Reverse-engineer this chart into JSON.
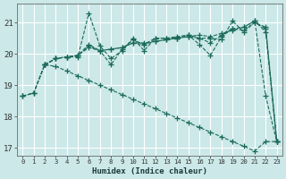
{
  "xlabel": "Humidex (Indice chaleur)",
  "bg_color": "#cce8e8",
  "grid_color": "#ffffff",
  "line_color": "#1a6a5a",
  "xlim": [
    -0.5,
    23.5
  ],
  "ylim": [
    16.75,
    21.6
  ],
  "yticks": [
    17,
    18,
    19,
    20,
    21
  ],
  "xticks": [
    0,
    1,
    2,
    3,
    4,
    5,
    6,
    7,
    8,
    9,
    10,
    11,
    12,
    13,
    14,
    15,
    16,
    17,
    18,
    19,
    20,
    21,
    22,
    23
  ],
  "lines": [
    {
      "x": [
        0,
        1,
        2,
        3,
        4,
        5,
        6,
        7,
        8,
        9,
        10,
        11,
        12,
        13,
        14,
        15,
        16,
        17,
        18,
        19,
        20,
        21,
        22,
        23
      ],
      "y": [
        18.65,
        18.75,
        19.65,
        19.85,
        19.9,
        19.9,
        21.3,
        20.25,
        19.85,
        20.1,
        20.5,
        20.1,
        20.5,
        20.5,
        20.55,
        20.6,
        20.5,
        20.5,
        20.45,
        21.05,
        20.7,
        21.0,
        20.85,
        17.2
      ]
    },
    {
      "x": [
        0,
        1,
        2,
        3,
        4,
        5,
        6,
        7,
        8,
        9,
        10,
        11,
        12,
        13,
        14,
        15,
        16,
        17,
        18,
        19,
        20,
        21,
        22,
        23
      ],
      "y": [
        18.65,
        18.75,
        19.65,
        19.85,
        19.9,
        19.95,
        20.25,
        20.1,
        20.15,
        20.2,
        20.35,
        20.3,
        20.4,
        20.45,
        20.5,
        20.55,
        20.5,
        20.35,
        20.6,
        20.8,
        20.85,
        21.05,
        18.65,
        17.2
      ]
    },
    {
      "x": [
        0,
        1,
        2,
        3,
        4,
        5,
        6,
        7,
        8,
        9,
        10,
        11,
        12,
        13,
        14,
        15,
        16,
        17,
        18,
        19,
        20,
        21,
        22,
        23
      ],
      "y": [
        18.65,
        18.75,
        19.65,
        19.6,
        19.45,
        19.3,
        19.15,
        19.0,
        18.85,
        18.7,
        18.55,
        18.4,
        18.25,
        18.1,
        17.95,
        17.8,
        17.65,
        17.5,
        17.35,
        17.2,
        17.05,
        16.9,
        17.2,
        17.2
      ]
    },
    {
      "x": [
        2,
        3,
        4,
        5,
        6,
        7,
        8,
        9,
        10,
        11,
        12,
        13,
        14,
        15,
        16,
        17,
        18,
        19,
        20,
        21,
        22,
        23
      ],
      "y": [
        19.65,
        19.85,
        19.9,
        19.95,
        20.3,
        20.1,
        20.15,
        20.2,
        20.35,
        20.35,
        20.4,
        20.45,
        20.5,
        20.55,
        20.6,
        20.55,
        20.65,
        20.75,
        20.85,
        21.05,
        20.7,
        17.2
      ]
    },
    {
      "x": [
        2,
        3,
        4,
        5,
        6,
        7,
        8,
        9,
        10,
        11,
        12,
        13,
        14,
        15,
        16,
        17,
        18,
        19,
        20,
        21,
        22,
        23
      ],
      "y": [
        19.65,
        19.85,
        19.9,
        19.95,
        20.2,
        20.1,
        19.65,
        20.15,
        20.45,
        20.3,
        20.5,
        20.5,
        20.5,
        20.6,
        20.3,
        19.95,
        20.55,
        20.8,
        20.75,
        21.0,
        20.8,
        17.2
      ]
    }
  ]
}
